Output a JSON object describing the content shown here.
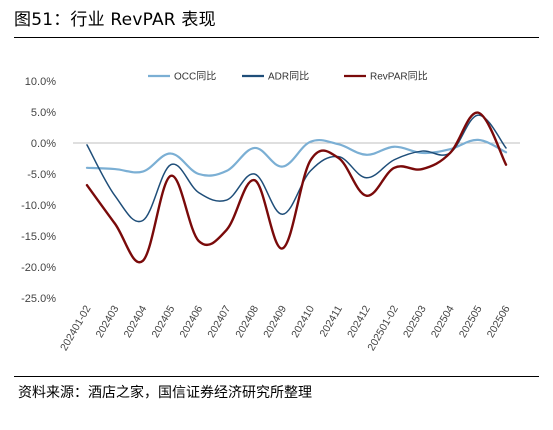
{
  "figure": {
    "title": "图51：行业 RevPAR 表现",
    "source": "资料来源：酒店之家，国信证券经济研究所整理"
  },
  "chart_data": {
    "type": "line",
    "title": "",
    "xlabel": "",
    "ylabel": "",
    "categories": [
      "202401-02",
      "202403",
      "202404",
      "202405",
      "202406",
      "202407",
      "202408",
      "202409",
      "202410",
      "202411",
      "202412",
      "202501-02",
      "202503",
      "202504",
      "202505",
      "202506"
    ],
    "y_tick_labels": [
      "10.0%",
      "5.0%",
      "0.0%",
      "-5.0%",
      "-10.0%",
      "-15.0%",
      "-20.0%",
      "-25.0%"
    ],
    "ylim": [
      -25,
      10
    ],
    "y_unit": "%",
    "legend_position": "top",
    "grid": false,
    "series": [
      {
        "name": "OCC同比",
        "color": "#7BAFD4",
        "values": [
          -4.0,
          -4.2,
          -4.6,
          -1.7,
          -5.0,
          -4.5,
          -0.8,
          -3.8,
          0.2,
          -0.2,
          -1.9,
          -0.6,
          -1.6,
          -1.0,
          0.5,
          -1.5
        ]
      },
      {
        "name": "ADR同比",
        "color": "#1F4E79",
        "values": [
          -0.3,
          -8.5,
          -12.5,
          -3.5,
          -8.0,
          -9.2,
          -5.0,
          -11.5,
          -4.5,
          -2.2,
          -5.6,
          -2.7,
          -1.3,
          -1.6,
          4.5,
          -0.8
        ]
      },
      {
        "name": "RevPAR同比",
        "color": "#7A0A0A",
        "values": [
          -6.8,
          -13.0,
          -19.0,
          -5.3,
          -15.8,
          -14.0,
          -6.0,
          -17.0,
          -2.8,
          -2.4,
          -8.5,
          -4.0,
          -4.2,
          -1.6,
          4.9,
          -3.5
        ]
      }
    ]
  }
}
